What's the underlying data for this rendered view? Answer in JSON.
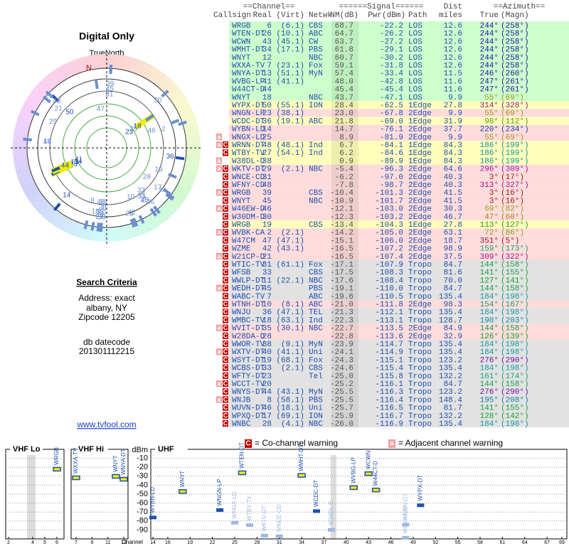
{
  "header": {
    "title": "Digital Only"
  },
  "polar": {
    "label": "TrueNorth",
    "north": "N"
  },
  "search": {
    "title": "Search Criteria",
    "lines": [
      "Address: exact",
      "albany, NY",
      "Zipcode 12205"
    ],
    "datecode_label": "db datecode",
    "datecode": "201301112215",
    "link": "www.tvfool.com"
  },
  "table": {
    "groups": [
      "==Channel==",
      "======Signal======",
      "Dist",
      "==Azimuth=="
    ],
    "columns": [
      "Callsign",
      "Real",
      "(Virt)",
      "Netwk",
      "NM(dB)",
      "Pwr(dBm)",
      "Path",
      "miles",
      "True",
      "(Magn)"
    ],
    "rows": [
      {
        "call": "WRGB",
        "real": 6,
        "virt": "(6.1)",
        "net": "CBS",
        "nm": "68.7",
        "pwr": "-22.2",
        "path": "LOS",
        "dist": "12.6",
        "true": "244°",
        "magn": "(258°)"
      },
      {
        "call": "WTEN-DT",
        "real": 26,
        "virt": "(10.1)",
        "net": "ABC",
        "nm": "64.7",
        "pwr": "-26.2",
        "path": "LOS",
        "dist": "12.6",
        "true": "244°",
        "magn": "(258°)"
      },
      {
        "call": "WCWN",
        "real": 43,
        "virt": "(45.1)",
        "net": "CW",
        "nm": "63.7",
        "pwr": "-27.2",
        "path": "LOS",
        "dist": "12.6",
        "true": "244°",
        "magn": "(258°)"
      },
      {
        "call": "WMHT-DT",
        "real": 34,
        "virt": "(17.1)",
        "net": "PBS",
        "nm": "61.8",
        "pwr": "-29.1",
        "path": "LOS",
        "dist": "12.6",
        "true": "244°",
        "magn": "(258°)"
      },
      {
        "call": "WNYT",
        "real": 12,
        "net": "NBC",
        "nm": "60.7",
        "pwr": "-30.2",
        "path": "LOS",
        "dist": "12.6",
        "true": "244°",
        "magn": "(258°)"
      },
      {
        "call": "WXXA-TV",
        "real": 7,
        "virt": "(23.1)",
        "net": "Fox",
        "nm": "59.1",
        "pwr": "-31.8",
        "path": "LOS",
        "dist": "12.6",
        "true": "244°",
        "magn": "(258°)"
      },
      {
        "call": "WNYA-DT",
        "real": 13,
        "virt": "(51.1)",
        "net": "MyN",
        "nm": "57.4",
        "pwr": "-33.4",
        "path": "LOS",
        "dist": "11.5",
        "true": "246°",
        "magn": "(260°)"
      },
      {
        "call": "WVBG-LP",
        "real": 41,
        "virt": "(41.1)",
        "nm": "48.0",
        "pwr": "-42.8",
        "path": "LOS",
        "dist": "11.6",
        "true": "247°",
        "magn": "(261°)"
      },
      {
        "call": "W44CT-D",
        "real": 44,
        "nm": "45.4",
        "pwr": "-45.4",
        "path": "LOS",
        "dist": "11.6",
        "true": "247°",
        "magn": "(261°)"
      },
      {
        "call": "WNYT",
        "real": 18,
        "net": "NBC",
        "nm": "43.7",
        "pwr": "-47.1",
        "path": "LOS",
        "dist": "9.9",
        "true": "55°",
        "magn": "(69°)"
      },
      {
        "call": "WYPX-DT",
        "real": 50,
        "virt": "(55.1)",
        "net": "ION",
        "nm": "28.4",
        "pwr": "-62.5",
        "path": "1Edge",
        "dist": "27.8",
        "true": "314°",
        "magn": "(328°)"
      },
      {
        "call": "WNGN-LP",
        "real": 23,
        "virt": "(38.1)",
        "nm": "23.0",
        "pwr": "-67.8",
        "path": "2Edge",
        "dist": "9.9",
        "true": "55°",
        "magn": "(69°)"
      },
      {
        "call": "WCDC-DT",
        "real": 36,
        "virt": "(19.1)",
        "net": "ABC",
        "nm": "21.8",
        "pwr": "-69.0",
        "path": "1Edge",
        "dist": "31.9",
        "true": "98°",
        "magn": "(112°)"
      },
      {
        "call": "WYBN-LD",
        "real": 14,
        "nm": "14.7",
        "pwr": "-76.1",
        "path": "2Edge",
        "dist": "37.7",
        "true": "220°",
        "magn": "(234°)"
      },
      {
        "flags": [
          "a"
        ],
        "call": "WNGX-LD",
        "real": 25,
        "nm": "8.9",
        "pwr": "-81.9",
        "path": "2Edge",
        "dist": "9.9",
        "true": "55°",
        "magn": "(69°)"
      },
      {
        "flags": [
          "a",
          "C"
        ],
        "call": "WRNN-DT",
        "real": 48,
        "virt": "(48.1)",
        "net": "Ind",
        "nm": "6.7",
        "pwr": "-84.1",
        "path": "1Edge",
        "dist": "84.3",
        "true": "186°",
        "magn": "(199°)"
      },
      {
        "flags": [
          "C"
        ],
        "call": "WTBY-TV",
        "real": 27,
        "virt": "(54.1)",
        "net": "Ind",
        "nm": "6.2",
        "pwr": "-84.6",
        "path": "1Edge",
        "dist": "84.3",
        "true": "186°",
        "magn": "(199°)"
      },
      {
        "flags": [
          "a"
        ],
        "call": "W38DL-D",
        "real": 38,
        "nm": "0.9",
        "pwr": "-89.9",
        "path": "1Edge",
        "dist": "84.3",
        "true": "186°",
        "magn": "(199°)"
      },
      {
        "flags": [
          "a",
          "C"
        ],
        "call": "WKTV-DT",
        "real": 29,
        "virt": "(2.1)",
        "net": "NBC",
        "nm": "-5.4",
        "pwr": "-96.3",
        "path": "2Edge",
        "dist": "64.6",
        "true": "296°",
        "magn": "(309°)"
      },
      {
        "flags": [
          "C"
        ],
        "call": "WNCE-CD",
        "real": 31,
        "nm": "-6.2",
        "pwr": "-97.0",
        "path": "2Edge",
        "dist": "40.3",
        "true": "3°",
        "magn": "(17°)"
      },
      {
        "flags": [
          "C"
        ],
        "call": "WFNY-CD",
        "real": 48,
        "nm": "-7.8",
        "pwr": "-98.7",
        "path": "2Edge",
        "dist": "40.3",
        "true": "313°",
        "magn": "(327°)"
      },
      {
        "flags": [
          "a",
          "C"
        ],
        "call": "WRGB",
        "real": 39,
        "net": "CBS",
        "nm": "-10.4",
        "pwr": "-101.3",
        "path": "2Edge",
        "dist": "41.5",
        "true": "3°",
        "magn": "(16°)"
      },
      {
        "flags": [
          "C"
        ],
        "call": "WNYT",
        "real": 45,
        "net": "NBC",
        "nm": "-10.9",
        "pwr": "-101.7",
        "path": "2Edge",
        "dist": "41.5",
        "true": "3°",
        "magn": "(16°)"
      },
      {
        "flags": [
          "a",
          "C"
        ],
        "call": "W46EW-D",
        "real": 46,
        "nm": "-12.1",
        "pwr": "-103.0",
        "path": "2Edge",
        "dist": "30.3",
        "true": "69°",
        "magn": "(82°)"
      },
      {
        "flags": [
          "C"
        ],
        "call": "W30DM-D",
        "real": 30,
        "nm": "-12.3",
        "pwr": "-103.2",
        "path": "2Edge",
        "dist": "46.7",
        "true": "47°",
        "magn": "(60°)"
      },
      {
        "flags": [
          "C"
        ],
        "call": "WRGB",
        "real": 19,
        "net": "CBS",
        "nm": "-13.4",
        "pwr": "-104.3",
        "path": "1Edge",
        "dist": "27.8",
        "true": "113°",
        "magn": "(127°)"
      },
      {
        "flags": [
          "a",
          "C"
        ],
        "call": "WVBK-CA",
        "real": 2,
        "virt": "(2.1)",
        "nm": "-14.2",
        "pwr": "-105.0",
        "path": "2Edge",
        "dist": "63.1",
        "true": "72°",
        "magn": "(86°)"
      },
      {
        "flags": [
          "C"
        ],
        "call": "W47CM",
        "real": 47,
        "virt": "(47.1)",
        "nm": "-15.1",
        "pwr": "-106.0",
        "path": "2Edge",
        "dist": "18.7",
        "true": "351°",
        "magn": "(5°)"
      },
      {
        "flags": [
          "C"
        ],
        "call": "WZME",
        "real": 42,
        "virt": "(43.1)",
        "nm": "-16.5",
        "pwr": "-107.2",
        "path": "2Edge",
        "dist": "98.9",
        "true": "159°",
        "magn": "(173°)"
      },
      {
        "flags": [
          "a",
          "C"
        ],
        "call": "W21CP-D",
        "real": 21,
        "nm": "-16.5",
        "pwr": "-107.4",
        "path": "2Edge",
        "dist": "37.5",
        "true": "309°",
        "magn": "(322°)"
      },
      {
        "flags": [
          "C"
        ],
        "call": "WTIC-TV",
        "real": 31,
        "virt": "(61.1)",
        "net": "Fox",
        "nm": "-17.1",
        "pwr": "-107.9",
        "path": "Tropo",
        "dist": "84.7",
        "true": "144°",
        "magn": "(158°)"
      },
      {
        "flags": [
          "C"
        ],
        "call": "WFSB",
        "real": 33,
        "net": "CBS",
        "nm": "-17.5",
        "pwr": "-108.3",
        "path": "Tropo",
        "dist": "81.6",
        "true": "141°",
        "magn": "(155°)"
      },
      {
        "flags": [
          "C"
        ],
        "call": "WWLP-DT",
        "real": 11,
        "virt": "(22.1)",
        "net": "NBC",
        "nm": "-17.6",
        "pwr": "-108.4",
        "path": "Tropo",
        "dist": "70.0",
        "true": "127°",
        "magn": "(141°)"
      },
      {
        "flags": [
          "a",
          "C"
        ],
        "call": "WEDH-DT",
        "real": 45,
        "net": "PBS",
        "nm": "-19.1",
        "pwr": "-110.0",
        "path": "Tropo",
        "dist": "84.7",
        "true": "144°",
        "magn": "(158°)"
      },
      {
        "flags": [
          "C"
        ],
        "call": "WABC-TV",
        "real": 7,
        "net": "ABC",
        "nm": "-19.6",
        "pwr": "-110.5",
        "path": "Tropo",
        "dist": "135.4",
        "true": "184°",
        "magn": "(198°)"
      },
      {
        "flags": [
          "C"
        ],
        "call": "WTNH-DT",
        "real": 10,
        "virt": "(8.1)",
        "net": "ABC",
        "nm": "-21.0",
        "pwr": "-111.8",
        "path": "2Edge",
        "dist": "98.3",
        "true": "154°",
        "magn": "(167°)"
      },
      {
        "flags": [
          "C"
        ],
        "call": "WNJU",
        "real": 36,
        "virt": "(47.1)",
        "net": "TEL",
        "nm": "-21.3",
        "pwr": "-112.1",
        "path": "Tropo",
        "dist": "135.4",
        "true": "184°",
        "magn": "(198°)"
      },
      {
        "flags": [
          "C"
        ],
        "call": "WMBC-TV",
        "real": 18,
        "virt": "(63.1)",
        "net": "Ind",
        "nm": "-22.3",
        "pwr": "-113.1",
        "path": "Tropo",
        "dist": "128.7",
        "true": "190°",
        "magn": "(203°)"
      },
      {
        "flags": [
          "a",
          "C"
        ],
        "call": "WVIT-DT",
        "real": 35,
        "virt": "(30.1)",
        "net": "NBC",
        "nm": "-22.7",
        "pwr": "-113.5",
        "path": "2Edge",
        "dist": "84.9",
        "true": "144°",
        "magn": "(158°)"
      },
      {
        "flags": [
          "C"
        ],
        "call": "W28DA-D",
        "real": 28,
        "nm": "-22.8",
        "pwr": "-113.6",
        "path": "2Edge",
        "dist": "32.9",
        "true": "126°",
        "magn": "(139°)"
      },
      {
        "flags": [
          "C"
        ],
        "call": "WWOR-TV",
        "real": 38,
        "virt": "(9.1)",
        "net": "MyN",
        "nm": "-23.9",
        "pwr": "-114.7",
        "path": "Tropo",
        "dist": "135.4",
        "true": "184°",
        "magn": "(198°)"
      },
      {
        "flags": [
          "a",
          "C"
        ],
        "call": "WXTV-DT",
        "real": 40,
        "virt": "(41.1)",
        "net": "Uni",
        "nm": "-24.1",
        "pwr": "-114.9",
        "path": "Tropo",
        "dist": "135.4",
        "true": "184°",
        "magn": "(198°)"
      },
      {
        "flags": [
          "C"
        ],
        "call": "WSYT-DT",
        "real": 19,
        "virt": "(68.1)",
        "net": "Fox",
        "nm": "-24.3",
        "pwr": "-115.1",
        "path": "Tropo",
        "dist": "123.2",
        "true": "276°",
        "magn": "(290°)"
      },
      {
        "flags": [
          "C"
        ],
        "call": "WCBS-DT",
        "real": 33,
        "virt": "(2.1)",
        "net": "CBS",
        "nm": "-24.6",
        "pwr": "-115.4",
        "path": "Tropo",
        "dist": "135.4",
        "true": "184°",
        "magn": "(198°)"
      },
      {
        "flags": [
          "C"
        ],
        "call": "WFTY-DT",
        "real": 23,
        "net": "Tel",
        "nm": "-25.0",
        "pwr": "-115.8",
        "path": "Tropo",
        "dist": "132.2",
        "true": "161°",
        "magn": "(174°)"
      },
      {
        "flags": [
          "a",
          "C"
        ],
        "call": "WCCT-TV",
        "real": 20,
        "nm": "-25.2",
        "pwr": "-116.1",
        "path": "Tropo",
        "dist": "84.7",
        "true": "144°",
        "magn": "(158°)"
      },
      {
        "flags": [
          "C"
        ],
        "call": "WNYS-DT",
        "real": 44,
        "virt": "(43.1)",
        "net": "MyN",
        "nm": "-25.5",
        "pwr": "-116.3",
        "path": "Tropo",
        "dist": "123.2",
        "true": "276°",
        "magn": "(290°)"
      },
      {
        "flags": [
          "a",
          "C"
        ],
        "call": "WNJB",
        "real": 8,
        "virt": "(58.1)",
        "net": "PBS",
        "nm": "-25.5",
        "pwr": "-116.4",
        "path": "Tropo",
        "dist": "148.4",
        "true": "195°",
        "magn": "(208°)"
      },
      {
        "flags": [
          "C"
        ],
        "call": "WUVN-DT",
        "real": 46,
        "virt": "(18.1)",
        "net": "Uni",
        "nm": "-25.7",
        "pwr": "-116.5",
        "path": "Tropo",
        "dist": "81.7",
        "true": "141°",
        "magn": "(155°)"
      },
      {
        "flags": [
          "C"
        ],
        "call": "WPXQ-DT",
        "real": 17,
        "virt": "(69.1)",
        "net": "ION",
        "nm": "-25.9",
        "pwr": "-116.7",
        "path": "Tropo",
        "dist": "132.2",
        "true": "128°",
        "magn": "(142°)"
      },
      {
        "flags": [
          "C"
        ],
        "call": "WNBC",
        "real": 28,
        "virt": "(4.1)",
        "net": "NBC",
        "nm": "-26.0",
        "pwr": "-116.9",
        "path": "Tropo",
        "dist": "135.4",
        "true": "184°",
        "magn": "(198°)"
      }
    ]
  },
  "spectrum": {
    "ylabel": "dBm",
    "xlabel": "Channel",
    "ylim": [
      0,
      -100
    ],
    "yticks": [
      -10,
      -20,
      -30,
      -40,
      -50,
      -60,
      -70,
      -80,
      -90
    ],
    "bands": [
      {
        "name": "VHF Lo",
        "xlim": [
          2,
          6
        ],
        "xticks": [
          2,
          4,
          5,
          6
        ]
      },
      {
        "name": "VHF Hi",
        "xlim": [
          7,
          13
        ],
        "xticks": [
          7,
          9,
          11,
          13
        ]
      },
      {
        "name": "UHF",
        "xlim": [
          14,
          69
        ],
        "xticks": [
          14,
          16,
          19,
          22,
          25,
          28,
          31,
          34,
          37,
          40,
          43,
          46,
          49,
          52,
          55,
          58,
          61,
          64,
          67,
          69
        ]
      }
    ],
    "legend": [
      {
        "mark": "C",
        "label": "= Co-channel warning"
      },
      {
        "mark": "a",
        "label": "= Adjacent channel warning"
      }
    ]
  }
}
